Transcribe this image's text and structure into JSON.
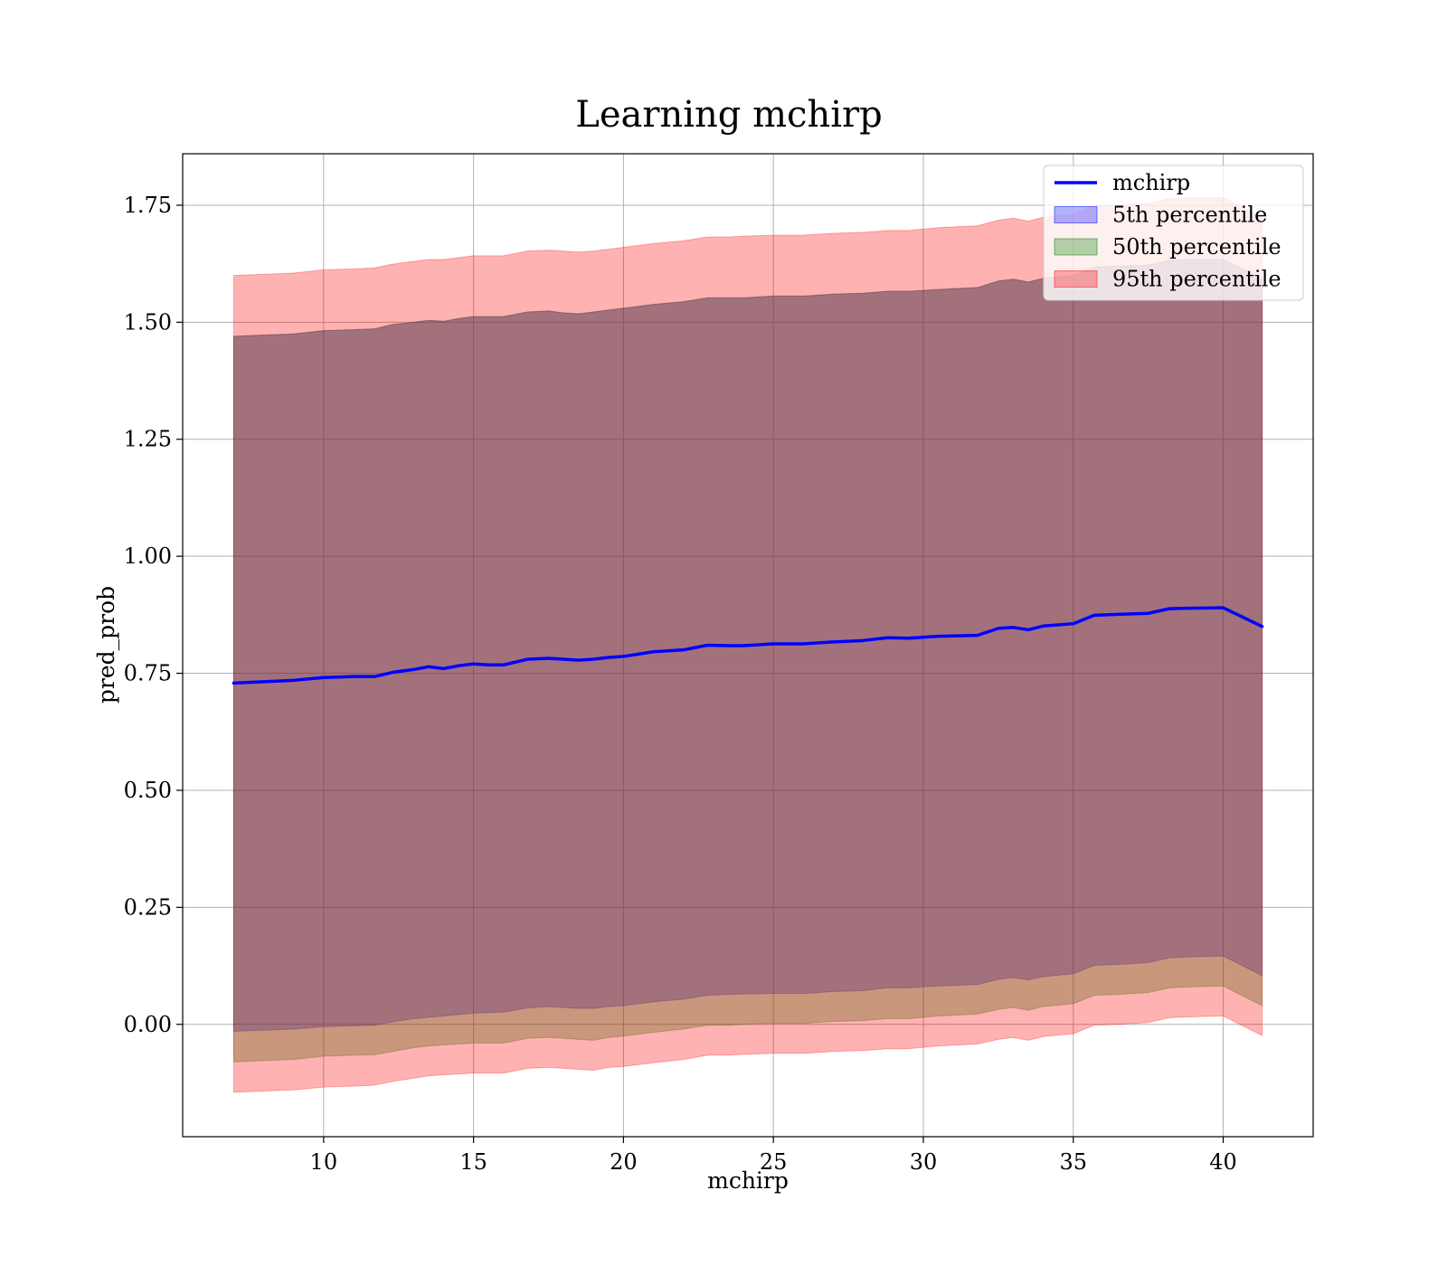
{
  "chart_data": {
    "type": "area",
    "title": "Learning mchirp",
    "xlabel": "mchirp",
    "ylabel": "pred_prob",
    "xlim": [
      5.3,
      43.0
    ],
    "ylim": [
      -0.24,
      1.86
    ],
    "grid": true,
    "legend_position": "top-right",
    "x_ticks": [
      10,
      15,
      20,
      25,
      30,
      35,
      40
    ],
    "x_tick_labels": [
      "10",
      "15",
      "20",
      "25",
      "30",
      "35",
      "40"
    ],
    "y_ticks": [
      0.0,
      0.25,
      0.5,
      0.75,
      1.0,
      1.25,
      1.5,
      1.75
    ],
    "y_tick_labels": [
      "0.00",
      "0.25",
      "0.50",
      "0.75",
      "1.00",
      "1.25",
      "1.50",
      "1.75"
    ],
    "x": [
      7.0,
      9.0,
      10.0,
      11.0,
      11.7,
      12.3,
      13.0,
      13.5,
      14.0,
      14.5,
      15.0,
      15.5,
      16.0,
      16.8,
      17.5,
      18.0,
      18.5,
      19.0,
      19.5,
      20.0,
      21.0,
      22.0,
      22.8,
      23.5,
      24.0,
      25.0,
      26.0,
      27.0,
      28.0,
      28.8,
      29.5,
      30.5,
      31.8,
      32.5,
      33.0,
      33.5,
      34.0,
      35.0,
      35.7,
      36.5,
      37.5,
      38.2,
      38.8,
      40.0,
      41.3
    ],
    "series": [
      {
        "name": "mchirp",
        "kind": "line",
        "color": "#0000ff",
        "values": [
          0.729,
          0.735,
          0.741,
          0.743,
          0.743,
          0.752,
          0.758,
          0.764,
          0.76,
          0.766,
          0.77,
          0.768,
          0.768,
          0.78,
          0.782,
          0.78,
          0.778,
          0.78,
          0.784,
          0.786,
          0.796,
          0.8,
          0.81,
          0.809,
          0.809,
          0.813,
          0.813,
          0.817,
          0.82,
          0.826,
          0.825,
          0.829,
          0.831,
          0.846,
          0.848,
          0.843,
          0.851,
          0.856,
          0.874,
          0.876,
          0.878,
          0.888,
          0.889,
          0.89,
          0.85
        ]
      },
      {
        "name": "5th percentile",
        "kind": "band",
        "color": "#0000ff",
        "opacity": 0.3,
        "lower": [
          -0.015,
          -0.01,
          -0.005,
          -0.003,
          -0.002,
          0.005,
          0.012,
          0.015,
          0.018,
          0.021,
          0.024,
          0.025,
          0.026,
          0.035,
          0.038,
          0.036,
          0.034,
          0.034,
          0.038,
          0.04,
          0.048,
          0.054,
          0.062,
          0.064,
          0.065,
          0.066,
          0.066,
          0.07,
          0.072,
          0.078,
          0.078,
          0.082,
          0.085,
          0.096,
          0.1,
          0.095,
          0.102,
          0.108,
          0.126,
          0.128,
          0.132,
          0.142,
          0.144,
          0.146,
          0.104
        ],
        "upper": [
          1.47,
          1.475,
          1.482,
          1.484,
          1.486,
          1.495,
          1.5,
          1.504,
          1.502,
          1.508,
          1.512,
          1.512,
          1.512,
          1.522,
          1.524,
          1.52,
          1.518,
          1.522,
          1.526,
          1.53,
          1.538,
          1.544,
          1.552,
          1.552,
          1.552,
          1.556,
          1.556,
          1.56,
          1.562,
          1.566,
          1.566,
          1.57,
          1.574,
          1.588,
          1.592,
          1.586,
          1.594,
          1.6,
          1.618,
          1.62,
          1.622,
          1.632,
          1.634,
          1.634,
          1.594
        ]
      },
      {
        "name": "50th percentile",
        "kind": "band",
        "color": "#008000",
        "opacity": 0.3,
        "lower": [
          -0.08,
          -0.075,
          -0.068,
          -0.066,
          -0.065,
          -0.058,
          -0.05,
          -0.046,
          -0.044,
          -0.042,
          -0.04,
          -0.04,
          -0.04,
          -0.03,
          -0.028,
          -0.03,
          -0.032,
          -0.034,
          -0.028,
          -0.025,
          -0.017,
          -0.01,
          -0.002,
          -0.002,
          0.0,
          0.002,
          0.002,
          0.006,
          0.008,
          0.012,
          0.012,
          0.018,
          0.022,
          0.032,
          0.036,
          0.03,
          0.038,
          0.044,
          0.062,
          0.064,
          0.068,
          0.078,
          0.08,
          0.082,
          0.04
        ]
      },
      {
        "name": "95th percentile",
        "kind": "band",
        "color": "#ff0000",
        "opacity": 0.3,
        "lower": [
          -0.145,
          -0.14,
          -0.134,
          -0.132,
          -0.13,
          -0.122,
          -0.115,
          -0.11,
          -0.108,
          -0.106,
          -0.104,
          -0.104,
          -0.104,
          -0.094,
          -0.092,
          -0.094,
          -0.096,
          -0.098,
          -0.092,
          -0.09,
          -0.082,
          -0.075,
          -0.066,
          -0.066,
          -0.064,
          -0.062,
          -0.062,
          -0.058,
          -0.056,
          -0.052,
          -0.052,
          -0.046,
          -0.042,
          -0.032,
          -0.028,
          -0.034,
          -0.026,
          -0.02,
          -0.002,
          0.0,
          0.004,
          0.014,
          0.016,
          0.018,
          -0.024
        ],
        "upper": [
          1.6,
          1.605,
          1.612,
          1.614,
          1.616,
          1.624,
          1.63,
          1.634,
          1.634,
          1.638,
          1.642,
          1.642,
          1.642,
          1.652,
          1.654,
          1.652,
          1.65,
          1.652,
          1.656,
          1.66,
          1.668,
          1.674,
          1.682,
          1.682,
          1.684,
          1.686,
          1.686,
          1.69,
          1.692,
          1.696,
          1.696,
          1.702,
          1.706,
          1.718,
          1.722,
          1.716,
          1.724,
          1.73,
          1.748,
          1.75,
          1.754,
          1.764,
          1.766,
          1.766,
          1.724
        ]
      }
    ]
  }
}
